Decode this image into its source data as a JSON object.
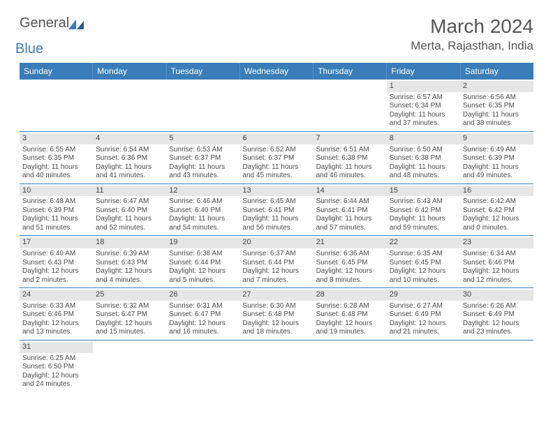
{
  "logo": {
    "part1": "General",
    "part2": "Blue"
  },
  "title": "March 2024",
  "location": "Merta, Rajasthan, India",
  "colors": {
    "header_bg": "#3a7db8",
    "grid_line": "#3a7db8",
    "daynum_bg": "#e6e6e6",
    "text": "#4a4a4a"
  },
  "day_names": [
    "Sunday",
    "Monday",
    "Tuesday",
    "Wednesday",
    "Thursday",
    "Friday",
    "Saturday"
  ],
  "weeks": [
    [
      {
        "day": "",
        "lines": []
      },
      {
        "day": "",
        "lines": []
      },
      {
        "day": "",
        "lines": []
      },
      {
        "day": "",
        "lines": []
      },
      {
        "day": "",
        "lines": []
      },
      {
        "day": "1",
        "lines": [
          "Sunrise: 6:57 AM",
          "Sunset: 6:34 PM",
          "Daylight: 11 hours and 37 minutes."
        ]
      },
      {
        "day": "2",
        "lines": [
          "Sunrise: 6:56 AM",
          "Sunset: 6:35 PM",
          "Daylight: 11 hours and 38 minutes."
        ]
      }
    ],
    [
      {
        "day": "3",
        "lines": [
          "Sunrise: 6:55 AM",
          "Sunset: 6:35 PM",
          "Daylight: 11 hours and 40 minutes."
        ]
      },
      {
        "day": "4",
        "lines": [
          "Sunrise: 6:54 AM",
          "Sunset: 6:36 PM",
          "Daylight: 11 hours and 41 minutes."
        ]
      },
      {
        "day": "5",
        "lines": [
          "Sunrise: 6:53 AM",
          "Sunset: 6:37 PM",
          "Daylight: 11 hours and 43 minutes."
        ]
      },
      {
        "day": "6",
        "lines": [
          "Sunrise: 6:52 AM",
          "Sunset: 6:37 PM",
          "Daylight: 11 hours and 45 minutes."
        ]
      },
      {
        "day": "7",
        "lines": [
          "Sunrise: 6:51 AM",
          "Sunset: 6:38 PM",
          "Daylight: 11 hours and 46 minutes."
        ]
      },
      {
        "day": "8",
        "lines": [
          "Sunrise: 6:50 AM",
          "Sunset: 6:38 PM",
          "Daylight: 11 hours and 48 minutes."
        ]
      },
      {
        "day": "9",
        "lines": [
          "Sunrise: 6:49 AM",
          "Sunset: 6:39 PM",
          "Daylight: 11 hours and 49 minutes."
        ]
      }
    ],
    [
      {
        "day": "10",
        "lines": [
          "Sunrise: 6:48 AM",
          "Sunset: 6:39 PM",
          "Daylight: 11 hours and 51 minutes."
        ]
      },
      {
        "day": "11",
        "lines": [
          "Sunrise: 6:47 AM",
          "Sunset: 6:40 PM",
          "Daylight: 11 hours and 52 minutes."
        ]
      },
      {
        "day": "12",
        "lines": [
          "Sunrise: 6:46 AM",
          "Sunset: 6:40 PM",
          "Daylight: 11 hours and 54 minutes."
        ]
      },
      {
        "day": "13",
        "lines": [
          "Sunrise: 6:45 AM",
          "Sunset: 6:41 PM",
          "Daylight: 11 hours and 56 minutes."
        ]
      },
      {
        "day": "14",
        "lines": [
          "Sunrise: 6:44 AM",
          "Sunset: 6:41 PM",
          "Daylight: 11 hours and 57 minutes."
        ]
      },
      {
        "day": "15",
        "lines": [
          "Sunrise: 6:43 AM",
          "Sunset: 6:42 PM",
          "Daylight: 11 hours and 59 minutes."
        ]
      },
      {
        "day": "16",
        "lines": [
          "Sunrise: 6:42 AM",
          "Sunset: 6:42 PM",
          "Daylight: 12 hours and 0 minutes."
        ]
      }
    ],
    [
      {
        "day": "17",
        "lines": [
          "Sunrise: 6:40 AM",
          "Sunset: 6:43 PM",
          "Daylight: 12 hours and 2 minutes."
        ]
      },
      {
        "day": "18",
        "lines": [
          "Sunrise: 6:39 AM",
          "Sunset: 6:43 PM",
          "Daylight: 12 hours and 4 minutes."
        ]
      },
      {
        "day": "19",
        "lines": [
          "Sunrise: 6:38 AM",
          "Sunset: 6:44 PM",
          "Daylight: 12 hours and 5 minutes."
        ]
      },
      {
        "day": "20",
        "lines": [
          "Sunrise: 6:37 AM",
          "Sunset: 6:44 PM",
          "Daylight: 12 hours and 7 minutes."
        ]
      },
      {
        "day": "21",
        "lines": [
          "Sunrise: 6:36 AM",
          "Sunset: 6:45 PM",
          "Daylight: 12 hours and 8 minutes."
        ]
      },
      {
        "day": "22",
        "lines": [
          "Sunrise: 6:35 AM",
          "Sunset: 6:45 PM",
          "Daylight: 12 hours and 10 minutes."
        ]
      },
      {
        "day": "23",
        "lines": [
          "Sunrise: 6:34 AM",
          "Sunset: 6:46 PM",
          "Daylight: 12 hours and 12 minutes."
        ]
      }
    ],
    [
      {
        "day": "24",
        "lines": [
          "Sunrise: 6:33 AM",
          "Sunset: 6:46 PM",
          "Daylight: 12 hours and 13 minutes."
        ]
      },
      {
        "day": "25",
        "lines": [
          "Sunrise: 6:32 AM",
          "Sunset: 6:47 PM",
          "Daylight: 12 hours and 15 minutes."
        ]
      },
      {
        "day": "26",
        "lines": [
          "Sunrise: 6:31 AM",
          "Sunset: 6:47 PM",
          "Daylight: 12 hours and 16 minutes."
        ]
      },
      {
        "day": "27",
        "lines": [
          "Sunrise: 6:30 AM",
          "Sunset: 6:48 PM",
          "Daylight: 12 hours and 18 minutes."
        ]
      },
      {
        "day": "28",
        "lines": [
          "Sunrise: 6:28 AM",
          "Sunset: 6:48 PM",
          "Daylight: 12 hours and 19 minutes."
        ]
      },
      {
        "day": "29",
        "lines": [
          "Sunrise: 6:27 AM",
          "Sunset: 6:49 PM",
          "Daylight: 12 hours and 21 minutes."
        ]
      },
      {
        "day": "30",
        "lines": [
          "Sunrise: 6:26 AM",
          "Sunset: 6:49 PM",
          "Daylight: 12 hours and 23 minutes."
        ]
      }
    ],
    [
      {
        "day": "31",
        "lines": [
          "Sunrise: 6:25 AM",
          "Sunset: 6:50 PM",
          "Daylight: 12 hours and 24 minutes."
        ]
      },
      {
        "day": "",
        "lines": []
      },
      {
        "day": "",
        "lines": []
      },
      {
        "day": "",
        "lines": []
      },
      {
        "day": "",
        "lines": []
      },
      {
        "day": "",
        "lines": []
      },
      {
        "day": "",
        "lines": []
      }
    ]
  ]
}
